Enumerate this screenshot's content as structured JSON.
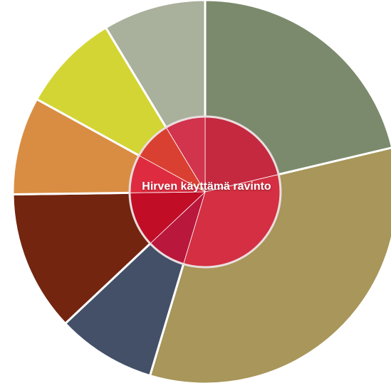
{
  "chart_data": {
    "type": "pie",
    "variant": "sunburst",
    "title": "",
    "center_label": "Hirven käyttämä ravinto",
    "start_angle_deg": 0,
    "direction": "clockwise",
    "outer_ring": [
      {
        "value": 20.7,
        "color": "#7b8a6c"
      },
      {
        "value": 32.4,
        "color": "#a8965a"
      },
      {
        "value": 8.1,
        "color": "#435068"
      },
      {
        "value": 11.5,
        "color": "#73250f"
      },
      {
        "value": 8.0,
        "color": "#d98d42"
      },
      {
        "value": 8.1,
        "color": "#d3d534"
      },
      {
        "value": 8.4,
        "color": "#a9b09c"
      }
    ],
    "inner_ring": [
      {
        "value": 20.7,
        "color": "#c4293f"
      },
      {
        "value": 32.4,
        "color": "#d42f42"
      },
      {
        "value": 8.1,
        "color": "#b9183c"
      },
      {
        "value": 11.5,
        "color": "#c20d27"
      },
      {
        "value": 8.0,
        "color": "#df2b3f"
      },
      {
        "value": 8.1,
        "color": "#da4031"
      },
      {
        "value": 8.4,
        "color": "#d2334d"
      }
    ],
    "separator_color": "#ffffff"
  }
}
